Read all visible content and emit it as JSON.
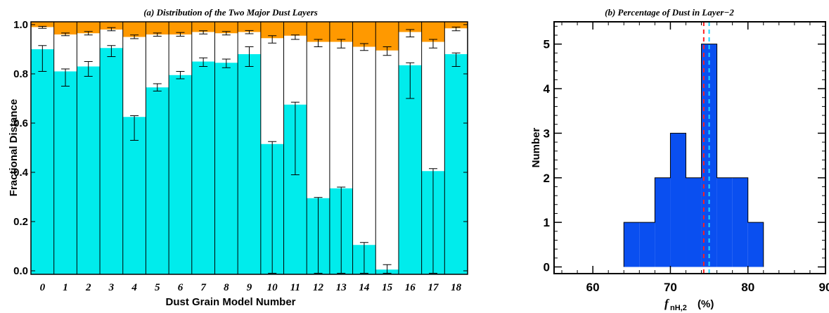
{
  "chart_data": [
    {
      "type": "bar",
      "title": "(a) Distribution of the Two Major Dust Layers",
      "xlabel": "Dust Grain Model Number",
      "ylabel": "Fractional Distance",
      "ylim": [
        0,
        1.0
      ],
      "yticks": [
        "0.0",
        "0.2",
        "0.4",
        "0.6",
        "0.8",
        "1.0"
      ],
      "categories": [
        "0",
        "1",
        "2",
        "3",
        "4",
        "5",
        "6",
        "7",
        "8",
        "9",
        "10",
        "11",
        "12",
        "13",
        "14",
        "15",
        "16",
        "17",
        "18"
      ],
      "colors": {
        "layer1": "#00ECEC",
        "layer2": "#FF9900"
      },
      "layer1_top": [
        0.9,
        0.81,
        0.83,
        0.905,
        0.625,
        0.745,
        0.795,
        0.85,
        0.845,
        0.88,
        0.515,
        0.675,
        0.295,
        0.335,
        0.105,
        0.005,
        0.835,
        0.405,
        0.88
      ],
      "layer1_err_low": [
        0.81,
        0.75,
        0.79,
        0.87,
        0.53,
        0.73,
        0.78,
        0.83,
        0.825,
        0.83,
        -0.01,
        0.39,
        -0.01,
        -0.01,
        -0.01,
        -0.01,
        0.7,
        -0.01,
        0.83
      ],
      "layer1_err_high": [
        0.915,
        0.82,
        0.85,
        0.915,
        0.63,
        0.76,
        0.81,
        0.865,
        0.86,
        0.91,
        0.525,
        0.685,
        0.298,
        0.34,
        0.115,
        0.025,
        0.845,
        0.415,
        0.885
      ],
      "layer2_bottom": [
        0.99,
        0.96,
        0.965,
        0.98,
        0.95,
        0.96,
        0.96,
        0.97,
        0.965,
        0.97,
        0.945,
        0.955,
        0.93,
        0.93,
        0.91,
        0.895,
        0.97,
        0.93,
        0.985
      ],
      "layer2_err_low": [
        0.985,
        0.955,
        0.958,
        0.975,
        0.943,
        0.953,
        0.953,
        0.962,
        0.958,
        0.963,
        0.925,
        0.94,
        0.91,
        0.905,
        0.895,
        0.875,
        0.95,
        0.905,
        0.975
      ],
      "layer2_err_high": [
        0.993,
        0.966,
        0.972,
        0.988,
        0.958,
        0.966,
        0.968,
        0.975,
        0.972,
        0.976,
        0.955,
        0.958,
        0.94,
        0.94,
        0.923,
        0.91,
        0.98,
        0.94,
        0.99
      ]
    },
    {
      "type": "bar",
      "title": "(b) Percentage of Dust in Layer−2",
      "xlabel_main": "f",
      "xlabel_sub": "nH,2",
      "xlabel_unit": "(%)",
      "ylabel": "Number",
      "xlim": [
        55,
        90
      ],
      "ylim": [
        -0.15,
        5.5
      ],
      "xticks": [
        "60",
        "70",
        "80",
        "90"
      ],
      "yticks": [
        "0",
        "1",
        "2",
        "3",
        "4",
        "5"
      ],
      "bin_edges": [
        64,
        66,
        68,
        70,
        72,
        74,
        76,
        78,
        80,
        82
      ],
      "counts": [
        1,
        1,
        2,
        3,
        2,
        5,
        2,
        2,
        1
      ],
      "bar_color": "#0A4FF0",
      "vlines": [
        {
          "x": 74.3,
          "color": "#FF2020"
        },
        {
          "x": 75.0,
          "color": "#20D8FF"
        }
      ]
    }
  ]
}
